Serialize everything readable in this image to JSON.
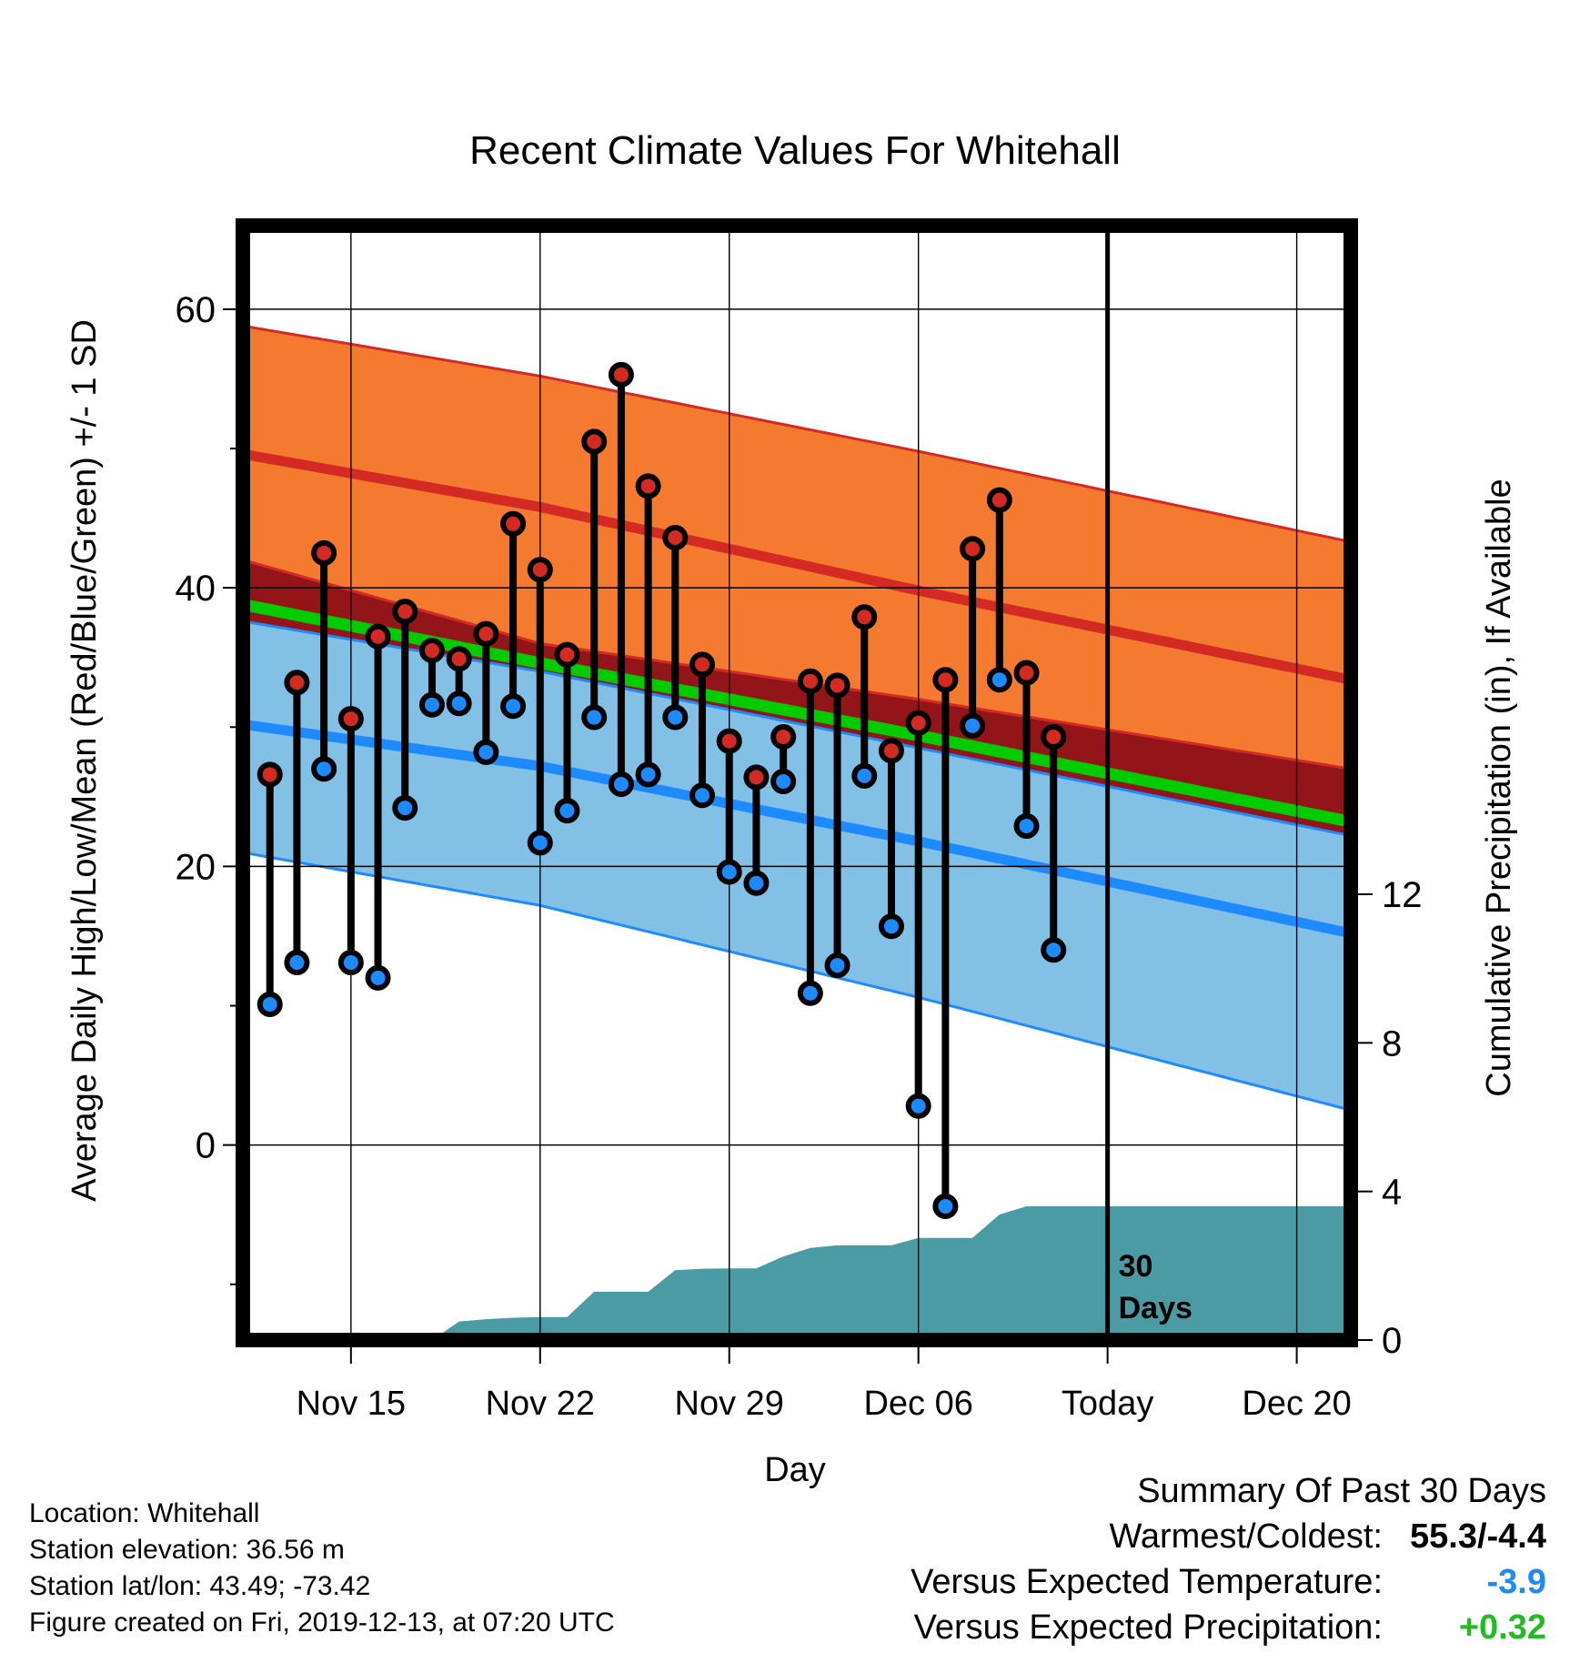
{
  "chart_data": {
    "type": "line",
    "title": "Recent Climate Values For Whitehall",
    "xlabel": "Day",
    "ylabel": "Average Daily High/Low/Mean (Red/Blue/Green) +/- 1 SD",
    "y2label": "Cumulative Precipitation (in), If Available",
    "x_range": [
      "2019-11-11",
      "2019-12-22"
    ],
    "ylim": [
      -14,
      66
    ],
    "y2lim": [
      0,
      30
    ],
    "grid": true,
    "x_ticks": [
      {
        "date": "2019-11-15",
        "label": "Nov 15"
      },
      {
        "date": "2019-11-22",
        "label": "Nov 22"
      },
      {
        "date": "2019-11-29",
        "label": "Nov 29"
      },
      {
        "date": "2019-12-06",
        "label": "Dec 06"
      },
      {
        "date": "2019-12-13",
        "label": "Today"
      },
      {
        "date": "2019-12-20",
        "label": "Dec 20"
      }
    ],
    "y_ticks": [
      "0",
      "20",
      "40",
      "60"
    ],
    "y2_ticks": [
      "0",
      "4",
      "8",
      "12"
    ],
    "today_line": {
      "date": "2019-12-13",
      "label_line1": "30",
      "label_line2": "Days"
    },
    "normals": {
      "dates": [
        "2019-11-11",
        "2019-11-22",
        "2019-12-06",
        "2019-12-22"
      ],
      "high_upper": [
        58.8,
        55.2,
        49.8,
        43.3
      ],
      "high_mean": [
        49.6,
        45.8,
        39.8,
        33.4
      ],
      "high_lower": [
        42.0,
        36.0,
        32.0,
        27.0
      ],
      "mean": [
        38.8,
        34.6,
        29.4,
        23.2
      ],
      "low_upper": [
        37.6,
        34.0,
        28.5,
        22.2
      ],
      "low_mean": [
        30.2,
        27.2,
        21.8,
        15.2
      ],
      "low_lower": [
        21.0,
        17.2,
        10.6,
        2.5
      ],
      "colors": {
        "high_band": "#f47a30",
        "high_line": "#d42a24",
        "overlap_band": "#931519",
        "mean_line": "#00cc00",
        "low_band": "#82c0e6",
        "low_line": "#1e8aff"
      }
    },
    "series": [
      {
        "name": "High",
        "color": "#d42a24",
        "dates": [
          "2019-11-12",
          "2019-11-13",
          "2019-11-14",
          "2019-11-15",
          "2019-11-16",
          "2019-11-17",
          "2019-11-18",
          "2019-11-19",
          "2019-11-20",
          "2019-11-21",
          "2019-11-22",
          "2019-11-23",
          "2019-11-24",
          "2019-11-25",
          "2019-11-26",
          "2019-11-27",
          "2019-11-28",
          "2019-11-29",
          "2019-11-30",
          "2019-12-01",
          "2019-12-02",
          "2019-12-03",
          "2019-12-04",
          "2019-12-05",
          "2019-12-06",
          "2019-12-07",
          "2019-12-08",
          "2019-12-09",
          "2019-12-10",
          "2019-12-11",
          "2019-12-12"
        ],
        "values": [
          26.6,
          33.2,
          42.5,
          30.6,
          36.5,
          38.3,
          35.5,
          34.9,
          36.7,
          44.6,
          41.3,
          35.2,
          50.5,
          55.3,
          47.3,
          43.6,
          34.5,
          29.0,
          26.4,
          29.3,
          33.3,
          33.0,
          37.9,
          28.3,
          30.3,
          33.4,
          42.8,
          46.3,
          33.9,
          29.3,
          null
        ]
      },
      {
        "name": "Low",
        "color": "#1e8aff",
        "dates": [
          "2019-11-12",
          "2019-11-13",
          "2019-11-14",
          "2019-11-15",
          "2019-11-16",
          "2019-11-17",
          "2019-11-18",
          "2019-11-19",
          "2019-11-20",
          "2019-11-21",
          "2019-11-22",
          "2019-11-23",
          "2019-11-24",
          "2019-11-25",
          "2019-11-26",
          "2019-11-27",
          "2019-11-28",
          "2019-11-29",
          "2019-11-30",
          "2019-12-01",
          "2019-12-02",
          "2019-12-03",
          "2019-12-04",
          "2019-12-05",
          "2019-12-06",
          "2019-12-07",
          "2019-12-08",
          "2019-12-09",
          "2019-12-10",
          "2019-12-11",
          "2019-12-12"
        ],
        "values": [
          10.1,
          13.1,
          27.0,
          13.1,
          12.0,
          24.2,
          31.6,
          31.7,
          28.2,
          31.5,
          21.7,
          24.0,
          30.7,
          25.9,
          26.6,
          30.7,
          25.1,
          19.6,
          18.8,
          26.1,
          10.9,
          12.9,
          26.5,
          15.7,
          2.8,
          -4.4,
          30.1,
          33.4,
          22.9,
          14.0,
          null
        ]
      },
      {
        "name": "Cumulative Precipitation",
        "color": "#4a9ba3",
        "dates": [
          "2019-11-11",
          "2019-11-16",
          "2019-11-17",
          "2019-11-18",
          "2019-11-19",
          "2019-11-20",
          "2019-11-21",
          "2019-11-22",
          "2019-11-23",
          "2019-11-24",
          "2019-11-25",
          "2019-11-26",
          "2019-11-27",
          "2019-11-28",
          "2019-11-29",
          "2019-11-30",
          "2019-12-01",
          "2019-12-02",
          "2019-12-03",
          "2019-12-04",
          "2019-12-05",
          "2019-12-06",
          "2019-12-07",
          "2019-12-08",
          "2019-12-09",
          "2019-12-10",
          "2019-12-11",
          "2019-12-12",
          "2019-12-13",
          "2019-12-22"
        ],
        "values": [
          0,
          0,
          0,
          0,
          0.5,
          0.56,
          0.6,
          0.62,
          0.62,
          1.3,
          1.3,
          1.3,
          1.88,
          1.92,
          1.93,
          1.93,
          2.25,
          2.48,
          2.55,
          2.55,
          2.55,
          2.75,
          2.75,
          2.75,
          3.38,
          3.6,
          3.6,
          3.6,
          3.6,
          3.6
        ]
      }
    ]
  },
  "info": {
    "location": "Location: Whitehall",
    "elevation": "Station elevation: 36.56 m",
    "latlon": "Station lat/lon: 43.49; -73.42",
    "created": "Figure created on Fri, 2019-12-13, at 07:20 UTC"
  },
  "summary": {
    "heading": "Summary Of Past 30 Days",
    "warmest_coldest_label": "Warmest/Coldest:",
    "warmest_coldest_value": "55.3/-4.4",
    "temp_label": "Versus Expected Temperature:",
    "temp_value": "-3.9",
    "temp_color": "#1e8aff",
    "precip_label": "Versus Expected Precipitation:",
    "precip_value": "+0.32",
    "precip_color": "#22bb22"
  }
}
